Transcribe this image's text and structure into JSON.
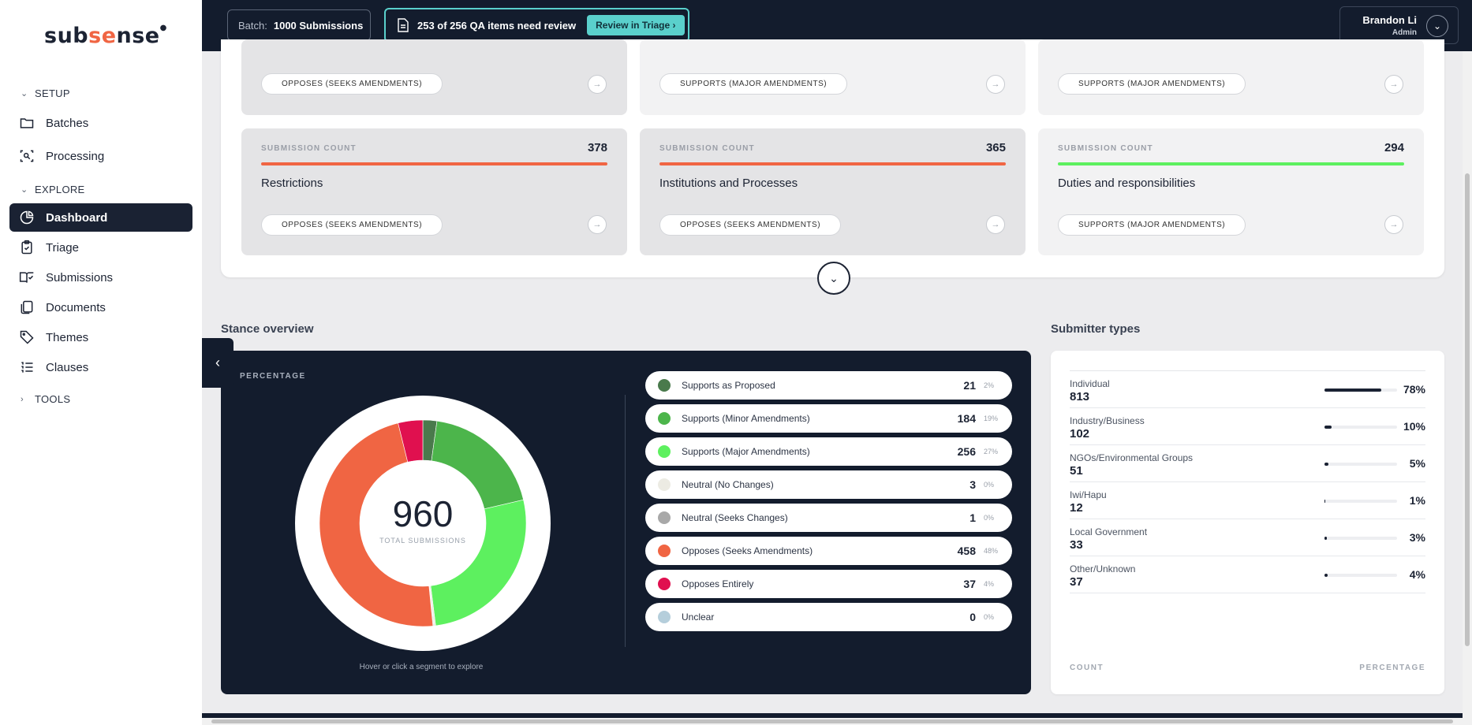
{
  "app": {
    "logo_part1": "sub",
    "logo_part2": "se",
    "logo_part3": "nse",
    "logo_mark": "●"
  },
  "sidebar": {
    "sections": [
      {
        "label": "SETUP",
        "chevron": "⌄"
      },
      {
        "label": "EXPLORE",
        "chevron": "⌄"
      },
      {
        "label": "TOOLS",
        "chevron": "›"
      }
    ],
    "items": [
      {
        "label": "Batches",
        "icon": "folder-icon"
      },
      {
        "label": "Processing",
        "icon": "scan-search-icon"
      },
      {
        "label": "Dashboard",
        "icon": "pie-chart-icon",
        "active": true
      },
      {
        "label": "Triage",
        "icon": "clipboard-check-icon"
      },
      {
        "label": "Submissions",
        "icon": "book-open-check-icon"
      },
      {
        "label": "Documents",
        "icon": "files-icon"
      },
      {
        "label": "Themes",
        "icon": "tag-icon"
      },
      {
        "label": "Clauses",
        "icon": "list-ordered-icon"
      }
    ]
  },
  "topbar": {
    "batch_label": "Batch:",
    "batch_value": "1000 Submissions",
    "qa_text": "253 of 256 QA items need review",
    "qa_button": "Review in Triage",
    "qa_button_arrow": "›",
    "user_name": "Brandon Li",
    "user_role": "Admin",
    "user_chevron": "⌄"
  },
  "theme_cards": {
    "count_label": "SUBMISSION COUNT",
    "arrow": "→",
    "expand_chevron": "⌄",
    "top_row": [
      {
        "stance": "OPPOSES (SEEKS AMENDMENTS)"
      },
      {
        "stance": "SUPPORTS (MAJOR AMENDMENTS)"
      },
      {
        "stance": "SUPPORTS (MAJOR AMENDMENTS)"
      }
    ],
    "cards": [
      {
        "count": "378",
        "title": "Restrictions",
        "stance": "OPPOSES (SEEKS AMENDMENTS)",
        "color": "#f06543"
      },
      {
        "count": "365",
        "title": "Institutions and Processes",
        "stance": "OPPOSES (SEEKS AMENDMENTS)",
        "color": "#f06543"
      },
      {
        "count": "294",
        "title": "Duties and responsibilities",
        "stance": "SUPPORTS (MAJOR AMENDMENTS)",
        "color": "#5df05f"
      }
    ]
  },
  "stance_overview": {
    "title": "Stance overview",
    "chart_label": "PERCENTAGE",
    "total": "960",
    "total_label": "TOTAL SUBMISSIONS",
    "hint": "Hover or click a segment to explore",
    "collapse_chevron": "‹"
  },
  "chart_data": {
    "type": "pie",
    "categories": [
      "Supports as Proposed",
      "Supports (Minor Amendments)",
      "Supports (Major Amendments)",
      "Neutral (No Changes)",
      "Neutral (Seeks Changes)",
      "Opposes (Seeks Amendments)",
      "Opposes Entirely",
      "Unclear"
    ],
    "values": [
      21,
      184,
      256,
      3,
      1,
      458,
      37,
      0
    ],
    "percent_labels": [
      "2%",
      "19%",
      "27%",
      "0%",
      "0%",
      "48%",
      "4%",
      "0%"
    ],
    "colors": [
      "#4a7a4c",
      "#4cb54b",
      "#5df05f",
      "#ecebe3",
      "#a8a8a8",
      "#f06543",
      "#e0104f",
      "#b5cedb"
    ],
    "title": "PERCENTAGE"
  },
  "submitter_types": {
    "title": "Submitter types",
    "count_footer": "COUNT",
    "pct_footer": "PERCENTAGE",
    "rows": [
      {
        "name": "Individual",
        "count": "813",
        "pct": "78%",
        "fraction": 0.78
      },
      {
        "name": "Industry/Business",
        "count": "102",
        "pct": "10%",
        "fraction": 0.1
      },
      {
        "name": "NGOs/Environmental Groups",
        "count": "51",
        "pct": "5%",
        "fraction": 0.05
      },
      {
        "name": "Iwi/Hapu",
        "count": "12",
        "pct": "1%",
        "fraction": 0.01
      },
      {
        "name": "Local Government",
        "count": "33",
        "pct": "3%",
        "fraction": 0.03
      },
      {
        "name": "Other/Unknown",
        "count": "37",
        "pct": "4%",
        "fraction": 0.04
      }
    ]
  }
}
